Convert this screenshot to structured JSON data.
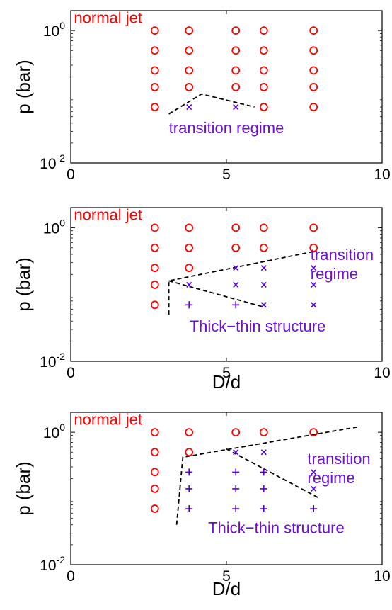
{
  "chart_data": [
    {
      "type": "scatter",
      "title": "",
      "xlabel": "",
      "ylabel": "p (bar)",
      "xlim": [
        0,
        10
      ],
      "ylim": [
        0.01,
        2
      ],
      "yscale": "log",
      "xticks": [
        "0",
        "5",
        "10"
      ],
      "yticks": [
        {
          "base": "10",
          "exp": "-2",
          "value": 0.01
        },
        {
          "base": "10",
          "exp": "0",
          "value": 1
        }
      ],
      "grid": false,
      "series": [
        {
          "marker": "o",
          "color": "#ff0000",
          "points": [
            [
              2.7,
              1.0
            ],
            [
              2.7,
              0.5
            ],
            [
              2.7,
              0.25
            ],
            [
              2.7,
              0.14
            ],
            [
              2.7,
              0.07
            ],
            [
              3.8,
              1.0
            ],
            [
              3.8,
              0.5
            ],
            [
              3.8,
              0.25
            ],
            [
              3.8,
              0.14
            ],
            [
              5.3,
              1.0
            ],
            [
              5.3,
              0.5
            ],
            [
              5.3,
              0.25
            ],
            [
              5.3,
              0.14
            ],
            [
              6.2,
              1.0
            ],
            [
              6.2,
              0.5
            ],
            [
              6.2,
              0.25
            ],
            [
              6.2,
              0.14
            ],
            [
              6.2,
              0.07
            ],
            [
              7.8,
              1.0
            ],
            [
              7.8,
              0.5
            ],
            [
              7.8,
              0.25
            ],
            [
              7.8,
              0.14
            ],
            [
              7.8,
              0.07
            ]
          ]
        },
        {
          "marker": "x",
          "color": "#5500dd",
          "points": [
            [
              3.8,
              0.07
            ],
            [
              5.3,
              0.07
            ]
          ]
        }
      ],
      "lines": [
        {
          "color": "#000000",
          "dash": true,
          "points": [
            [
              3.15,
              0.055
            ],
            [
              4.2,
              0.11
            ],
            [
              5.9,
              0.07
            ]
          ]
        }
      ],
      "annotations": [
        {
          "text": "normal jet",
          "color": "#ff0000",
          "x": 0.1,
          "y": 1.3,
          "size": 22
        },
        {
          "text": "transition regime",
          "color": "#6a0fe0",
          "x": 5.0,
          "y": 0.028,
          "anchor": "middle",
          "size": 22
        }
      ]
    },
    {
      "type": "scatter",
      "title": "",
      "xlabel": "D/d",
      "ylabel": "p (bar)",
      "xlim": [
        0,
        10
      ],
      "ylim": [
        0.01,
        2
      ],
      "yscale": "log",
      "xticks": [
        "0",
        "5",
        "10"
      ],
      "yticks": [
        {
          "base": "10",
          "exp": "-2",
          "value": 0.01
        },
        {
          "base": "10",
          "exp": "0",
          "value": 1
        }
      ],
      "grid": false,
      "series": [
        {
          "marker": "o",
          "color": "#ff0000",
          "points": [
            [
              2.7,
              1.0
            ],
            [
              2.7,
              0.5
            ],
            [
              2.7,
              0.25
            ],
            [
              2.7,
              0.14
            ],
            [
              2.7,
              0.07
            ],
            [
              3.8,
              1.0
            ],
            [
              3.8,
              0.5
            ],
            [
              3.8,
              0.25
            ],
            [
              5.3,
              1.0
            ],
            [
              5.3,
              0.5
            ],
            [
              6.2,
              1.0
            ],
            [
              6.2,
              0.5
            ],
            [
              7.8,
              1.0
            ],
            [
              7.8,
              0.5
            ]
          ]
        },
        {
          "marker": "x",
          "color": "#5500dd",
          "points": [
            [
              3.8,
              0.14
            ],
            [
              5.3,
              0.25
            ],
            [
              5.3,
              0.14
            ],
            [
              6.2,
              0.25
            ],
            [
              6.2,
              0.14
            ],
            [
              6.2,
              0.07
            ],
            [
              7.8,
              0.25
            ],
            [
              7.8,
              0.14
            ],
            [
              7.8,
              0.07
            ]
          ]
        },
        {
          "marker": "+",
          "color": "#5500dd",
          "points": [
            [
              3.8,
              0.07
            ],
            [
              5.3,
              0.07
            ]
          ]
        }
      ],
      "lines": [
        {
          "color": "#000000",
          "dash": true,
          "points": [
            [
              3.15,
              0.05
            ],
            [
              3.15,
              0.16
            ],
            [
              7.9,
              0.45
            ]
          ]
        },
        {
          "color": "#000000",
          "dash": true,
          "points": [
            [
              3.15,
              0.16
            ],
            [
              6.2,
              0.065
            ]
          ]
        }
      ],
      "annotations": [
        {
          "text": "normal jet",
          "color": "#ff0000",
          "x": 0.1,
          "y": 1.3,
          "size": 22
        },
        {
          "text": "transition",
          "color": "#6a0fe0",
          "x": 7.7,
          "y": 0.33,
          "size": 22
        },
        {
          "text": "regime",
          "color": "#6a0fe0",
          "x": 7.7,
          "y": 0.17,
          "size": 22
        },
        {
          "text": "Thick−thin structure",
          "color": "#6a0fe0",
          "x": 6.0,
          "y": 0.028,
          "anchor": "middle",
          "size": 22
        }
      ]
    },
    {
      "type": "scatter",
      "title": "",
      "xlabel": "D/d",
      "ylabel": "p (bar)",
      "xlim": [
        0,
        10
      ],
      "ylim": [
        0.01,
        2
      ],
      "yscale": "log",
      "xticks": [
        "0",
        "5",
        "10"
      ],
      "yticks": [
        {
          "base": "10",
          "exp": "-2",
          "value": 0.01
        },
        {
          "base": "10",
          "exp": "0",
          "value": 1
        }
      ],
      "grid": false,
      "series": [
        {
          "marker": "o",
          "color": "#ff0000",
          "points": [
            [
              2.7,
              1.0
            ],
            [
              2.7,
              0.5
            ],
            [
              2.7,
              0.25
            ],
            [
              2.7,
              0.14
            ],
            [
              2.7,
              0.07
            ],
            [
              3.8,
              1.0
            ],
            [
              3.8,
              0.5
            ],
            [
              5.3,
              1.0
            ],
            [
              6.2,
              1.0
            ],
            [
              7.8,
              1.0
            ]
          ]
        },
        {
          "marker": "x",
          "color": "#5500dd",
          "points": [
            [
              5.3,
              0.5
            ],
            [
              6.2,
              0.5
            ],
            [
              7.8,
              0.25
            ],
            [
              7.8,
              0.14
            ]
          ]
        },
        {
          "marker": "+",
          "color": "#5500dd",
          "points": [
            [
              3.8,
              0.25
            ],
            [
              3.8,
              0.14
            ],
            [
              3.8,
              0.07
            ],
            [
              5.3,
              0.25
            ],
            [
              5.3,
              0.14
            ],
            [
              5.3,
              0.07
            ],
            [
              6.2,
              0.25
            ],
            [
              6.2,
              0.14
            ],
            [
              6.2,
              0.07
            ],
            [
              7.8,
              0.07
            ]
          ]
        }
      ],
      "lines": [
        {
          "color": "#000000",
          "dash": true,
          "points": [
            [
              3.4,
              0.04
            ],
            [
              3.6,
              0.42
            ],
            [
              9.2,
              1.2
            ]
          ]
        },
        {
          "color": "#000000",
          "dash": true,
          "points": [
            [
              5.0,
              0.56
            ],
            [
              8.0,
              0.1
            ]
          ]
        }
      ],
      "annotations": [
        {
          "text": "normal jet",
          "color": "#ff0000",
          "x": 0.1,
          "y": 1.3,
          "size": 22
        },
        {
          "text": "transition",
          "color": "#6a0fe0",
          "x": 7.6,
          "y": 0.33,
          "size": 22
        },
        {
          "text": "regime",
          "color": "#6a0fe0",
          "x": 7.6,
          "y": 0.17,
          "size": 22
        },
        {
          "text": "Thick−thin structure",
          "color": "#6a0fe0",
          "x": 6.6,
          "y": 0.03,
          "anchor": "middle",
          "size": 22
        }
      ]
    }
  ]
}
